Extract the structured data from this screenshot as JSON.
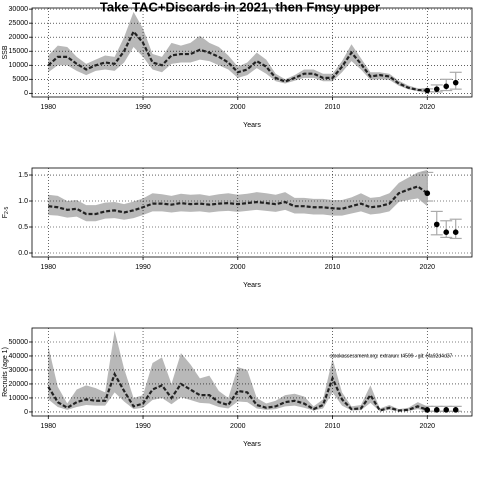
{
  "chart_data": [
    {
      "type": "line",
      "title": "Take TAC+Discards in 2021, then Fmsy upper",
      "xlabel": "Years",
      "ylabel": "SSB",
      "x": [
        1980,
        1981,
        1982,
        1983,
        1984,
        1985,
        1986,
        1987,
        1988,
        1989,
        1990,
        1991,
        1992,
        1993,
        1994,
        1995,
        1996,
        1997,
        1998,
        1999,
        2000,
        2001,
        2002,
        2003,
        2004,
        2005,
        2006,
        2007,
        2008,
        2009,
        2010,
        2011,
        2012,
        2013,
        2014,
        2015,
        2016,
        2017,
        2018,
        2019,
        2020
      ],
      "values": [
        10000,
        13000,
        13000,
        10500,
        8500,
        10000,
        11000,
        10500,
        15000,
        22000,
        18000,
        11000,
        10000,
        13500,
        14000,
        14000,
        15500,
        14500,
        13000,
        11000,
        7500,
        8500,
        11500,
        9500,
        5500,
        4200,
        5500,
        7000,
        7000,
        5500,
        5500,
        9500,
        14500,
        10500,
        6000,
        6500,
        6000,
        3500,
        2000,
        1200,
        1000
      ],
      "upper": [
        13500,
        17000,
        16500,
        13000,
        10500,
        12000,
        13500,
        13000,
        20000,
        29000,
        23000,
        14000,
        13000,
        18000,
        17000,
        18000,
        20500,
        18000,
        16500,
        13500,
        9500,
        11000,
        14500,
        12000,
        7000,
        5000,
        6500,
        8500,
        8500,
        7000,
        7000,
        11500,
        17500,
        12500,
        7500,
        7500,
        7000,
        4500,
        2800,
        1800,
        1600
      ],
      "lower": [
        7500,
        10000,
        10000,
        8000,
        6500,
        8000,
        8500,
        8000,
        11000,
        16500,
        13000,
        8500,
        7500,
        10500,
        11000,
        11000,
        12000,
        11500,
        10000,
        8500,
        5500,
        6500,
        9000,
        7000,
        4300,
        3500,
        4500,
        5500,
        5500,
        4300,
        4300,
        7500,
        11500,
        8500,
        4800,
        5000,
        4800,
        2700,
        1400,
        800,
        600
      ],
      "projection": {
        "x": [
          2020,
          2021,
          2022,
          2023
        ],
        "values": [
          1000,
          1500,
          2500,
          3800
        ],
        "low": [
          600,
          500,
          1000,
          1500
        ],
        "high": [
          1600,
          3000,
          5000,
          7500
        ]
      },
      "xlim": [
        1978.28,
        2024.72
      ],
      "ylim": [
        -1300,
        30400
      ],
      "xticks": [
        1980,
        1990,
        2000,
        2010,
        2020
      ],
      "yticks": [
        0,
        5000,
        10000,
        15000,
        20000,
        25000,
        30000
      ],
      "grid": true,
      "line_color": "#222222",
      "band_color": "#b8b8b8",
      "point_color": "#000000",
      "bar_color": "#aaaaaa"
    },
    {
      "type": "line",
      "xlabel": "Years",
      "ylabel": "F",
      "ylabel_subscript": "2-5",
      "x": [
        1980,
        1981,
        1982,
        1983,
        1984,
        1985,
        1986,
        1987,
        1988,
        1989,
        1990,
        1991,
        1992,
        1993,
        1994,
        1995,
        1996,
        1997,
        1998,
        1999,
        2000,
        2001,
        2002,
        2003,
        2004,
        2005,
        2006,
        2007,
        2008,
        2009,
        2010,
        2011,
        2012,
        2013,
        2014,
        2015,
        2016,
        2017,
        2018,
        2019,
        2020
      ],
      "values": [
        0.9,
        0.88,
        0.83,
        0.85,
        0.75,
        0.75,
        0.8,
        0.82,
        0.78,
        0.82,
        0.88,
        0.95,
        0.95,
        0.93,
        0.96,
        0.94,
        0.95,
        0.93,
        0.95,
        0.96,
        0.94,
        0.96,
        0.98,
        0.96,
        0.94,
        0.98,
        0.9,
        0.9,
        0.88,
        0.88,
        0.86,
        0.85,
        0.9,
        0.95,
        0.88,
        0.9,
        0.95,
        1.15,
        1.22,
        1.28,
        1.15
      ],
      "upper": [
        1.12,
        1.1,
        1.0,
        1.02,
        0.92,
        0.92,
        0.97,
        0.98,
        0.94,
        0.99,
        1.05,
        1.15,
        1.13,
        1.1,
        1.14,
        1.12,
        1.13,
        1.1,
        1.13,
        1.15,
        1.12,
        1.14,
        1.17,
        1.15,
        1.12,
        1.17,
        1.06,
        1.06,
        1.04,
        1.04,
        1.02,
        1.02,
        1.07,
        1.15,
        1.06,
        1.08,
        1.15,
        1.35,
        1.45,
        1.55,
        1.6
      ],
      "lower": [
        0.73,
        0.72,
        0.68,
        0.7,
        0.61,
        0.61,
        0.66,
        0.67,
        0.64,
        0.67,
        0.73,
        0.8,
        0.8,
        0.78,
        0.8,
        0.79,
        0.8,
        0.78,
        0.8,
        0.81,
        0.79,
        0.81,
        0.83,
        0.81,
        0.79,
        0.83,
        0.76,
        0.76,
        0.74,
        0.74,
        0.72,
        0.72,
        0.76,
        0.8,
        0.74,
        0.76,
        0.8,
        0.98,
        1.02,
        1.05,
        0.9
      ],
      "projection": {
        "x": [
          2020,
          2021,
          2022,
          2023
        ],
        "values": [
          1.15,
          0.55,
          0.4,
          0.4
        ],
        "low": [
          1.0,
          0.35,
          0.3,
          0.28
        ],
        "high": [
          1.55,
          0.8,
          0.62,
          0.65
        ]
      },
      "xlim": [
        1978.28,
        2024.72
      ],
      "ylim": [
        -0.077,
        1.635
      ],
      "xticks": [
        1980,
        1990,
        2000,
        2010,
        2020
      ],
      "yticks": [
        {
          "value": 0,
          "label": "0.0"
        },
        0.5,
        {
          "value": 1,
          "label": "1.0"
        },
        1.5
      ],
      "grid": true,
      "line_color": "#222222",
      "band_color": "#b8b8b8",
      "point_color": "#000000",
      "bar_color": "#aaaaaa"
    },
    {
      "type": "line",
      "xlabel": "Years",
      "ylabel": "Recruits (age 1)",
      "annotation": "stockassessment.org: extrarun: t4599 - git: 6fa92d4d37",
      "x": [
        1980,
        1981,
        1982,
        1983,
        1984,
        1985,
        1986,
        1987,
        1988,
        1989,
        1990,
        1991,
        1992,
        1993,
        1994,
        1995,
        1996,
        1997,
        1998,
        1999,
        2000,
        2001,
        2002,
        2003,
        2004,
        2005,
        2006,
        2007,
        2008,
        2009,
        2010,
        2011,
        2012,
        2013,
        2014,
        2015,
        2016,
        2017,
        2018,
        2019,
        2020
      ],
      "values": [
        18000,
        7000,
        3000,
        7000,
        9000,
        8000,
        8000,
        27000,
        15000,
        4000,
        6000,
        16000,
        19000,
        10000,
        20000,
        16000,
        12000,
        12000,
        7000,
        5000,
        15000,
        14000,
        5000,
        3000,
        4000,
        7000,
        8000,
        6000,
        2000,
        5000,
        24000,
        9000,
        2000,
        2500,
        12000,
        1000,
        3000,
        1000,
        1500,
        4000,
        1500
      ],
      "upper": [
        47000,
        18000,
        6000,
        16000,
        19000,
        17000,
        14000,
        58000,
        31000,
        10000,
        12000,
        35000,
        39000,
        20000,
        42000,
        34000,
        24000,
        26000,
        15000,
        10000,
        32000,
        30000,
        10000,
        6000,
        8000,
        12000,
        13000,
        11000,
        4000,
        9000,
        38000,
        14000,
        4000,
        5000,
        19000,
        2500,
        5000,
        2000,
        3000,
        7000,
        4000
      ],
      "lower": [
        9000,
        3500,
        1500,
        3500,
        5000,
        4500,
        4500,
        14000,
        7500,
        2000,
        3000,
        8500,
        10000,
        5500,
        10500,
        8500,
        6500,
        6000,
        3500,
        2500,
        7500,
        7000,
        2500,
        1500,
        2000,
        4000,
        4500,
        3000,
        1000,
        2500,
        14000,
        4500,
        1000,
        1300,
        6500,
        500,
        1500,
        400,
        700,
        2000,
        500
      ],
      "projection": {
        "x": [
          2020,
          2021,
          2022,
          2023
        ],
        "values": [
          1500,
          1500,
          1500,
          1500
        ],
        "low": [
          500,
          500,
          500,
          500
        ],
        "high": [
          4000,
          4000,
          4000,
          4000
        ]
      },
      "xlim": [
        1978.28,
        2024.72
      ],
      "ylim": [
        -2900,
        60000
      ],
      "xticks": [
        1980,
        1990,
        2000,
        2010,
        2020
      ],
      "yticks": [
        0,
        10000,
        20000,
        30000,
        40000,
        50000
      ],
      "grid": true,
      "line_color": "#222222",
      "band_color": "#b8b8b8",
      "point_color": "#000000",
      "bar_color": "#aaaaaa"
    }
  ]
}
